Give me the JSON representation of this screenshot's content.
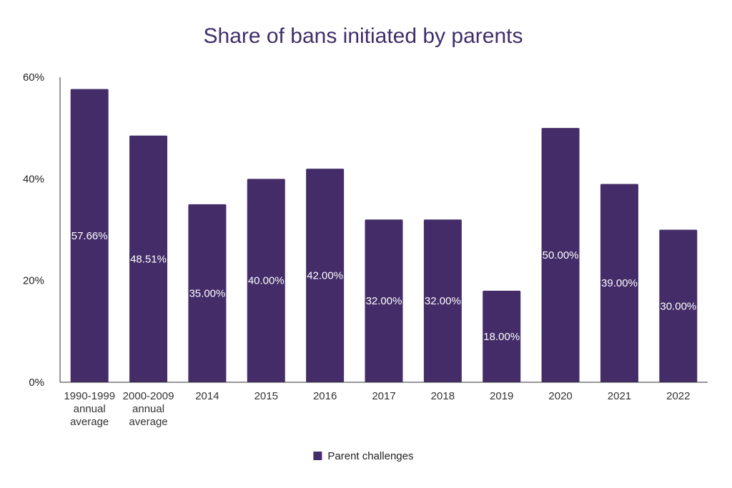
{
  "chart_data": {
    "type": "bar",
    "title": "Share of bans initiated by parents",
    "xlabel": "",
    "ylabel": "",
    "categories": [
      [
        "1990-1999",
        "annual",
        "average"
      ],
      [
        "2000-2009",
        "annual",
        "average"
      ],
      [
        "2014"
      ],
      [
        "2015"
      ],
      [
        "2016"
      ],
      [
        "2017"
      ],
      [
        "2018"
      ],
      [
        "2019"
      ],
      [
        "2020"
      ],
      [
        "2021"
      ],
      [
        "2022"
      ]
    ],
    "series": [
      {
        "name": "Parent challenges",
        "color": "#432c68",
        "values": [
          57.66,
          48.51,
          35.0,
          40.0,
          42.0,
          32.0,
          32.0,
          18.0,
          50.0,
          39.0,
          30.0
        ],
        "data_labels": [
          "57.66%",
          "48.51%",
          "35.00%",
          "40.00%",
          "42.00%",
          "32.00%",
          "32.00%",
          "18.00%",
          "50.00%",
          "39.00%",
          "30.00%"
        ]
      }
    ],
    "ylim": [
      0,
      60
    ],
    "y_ticks": [
      0,
      20,
      40,
      60
    ],
    "y_tick_labels": [
      "0%",
      "20%",
      "40%",
      "60%"
    ],
    "grid": false,
    "legend_position": "bottom-center",
    "title_color": "#3f2f6b",
    "axis_color": "#333333"
  }
}
